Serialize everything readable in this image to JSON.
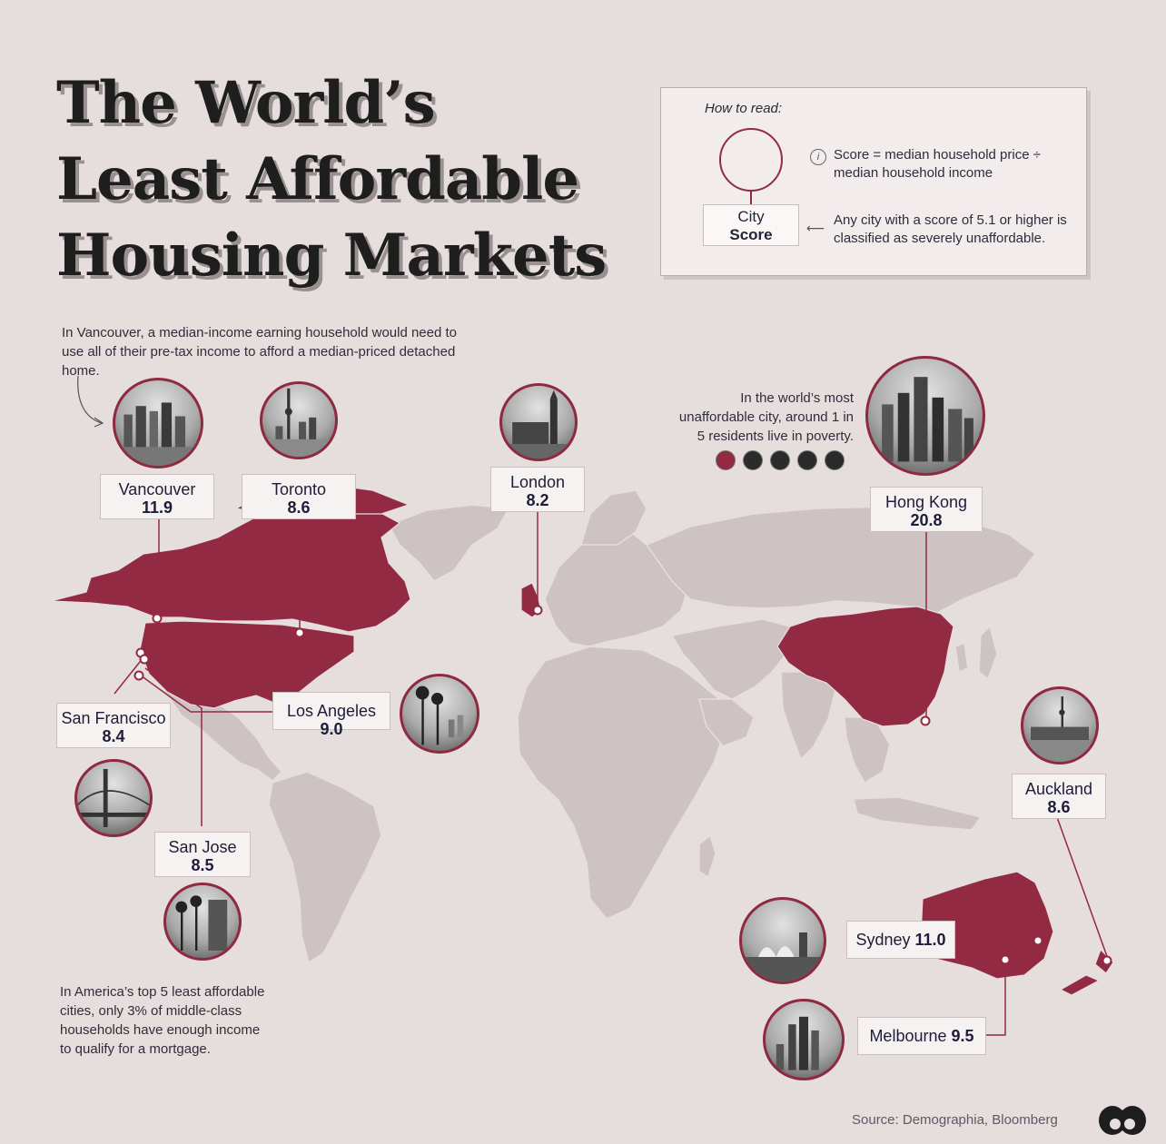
{
  "title": {
    "line1": "The World’s",
    "line2": "Least Affordable",
    "line3": "Housing Markets"
  },
  "legend": {
    "heading": "How to read:",
    "box_city": "City",
    "box_score": "Score",
    "info_icon": "i",
    "definition": "Score = median household price ÷ median household income",
    "threshold": "Any city with a score of 5.1 or higher is classified as severely unaffordable."
  },
  "notes": {
    "vancouver": "In Vancouver, a median-income earning household would need to use all of their pre-tax income to afford a median-priced detached home.",
    "hongkong": "In the world’s most unaffordable city, around 1 in 5 residents live in poverty.",
    "america": "In America’s top 5 least affordable cities, only 3% of middle-class households have enough income to qualify for a mortgage."
  },
  "cities": {
    "vancouver": {
      "name": "Vancouver",
      "score": "11.9"
    },
    "toronto": {
      "name": "Toronto",
      "score": "8.6"
    },
    "london": {
      "name": "London",
      "score": "8.2"
    },
    "hongkong": {
      "name": "Hong Kong",
      "score": "20.8"
    },
    "sanfrancisco": {
      "name": "San Francisco",
      "score": "8.4"
    },
    "losangeles": {
      "name": "Los Angeles",
      "score": "9.0"
    },
    "sanjose": {
      "name": "San Jose",
      "score": "8.5"
    },
    "auckland": {
      "name": "Auckland",
      "score": "8.6"
    },
    "sydney": {
      "name": "Sydney",
      "score": "11.0"
    },
    "melbourne": {
      "name": "Melbourne",
      "score": "9.5"
    }
  },
  "poverty_icons": {
    "total": 5,
    "highlighted": 1
  },
  "source": "Source: Demographia, Bloomberg",
  "colors": {
    "background": "#e6dddd",
    "land": "#cdc3c3",
    "highlight": "#922a44",
    "text": "#1d1d3a"
  },
  "icons": {
    "info": "info-icon",
    "arrow": "arrow-left-icon",
    "logo": "visual-capitalist-logo-icon",
    "person": "person-icon"
  }
}
